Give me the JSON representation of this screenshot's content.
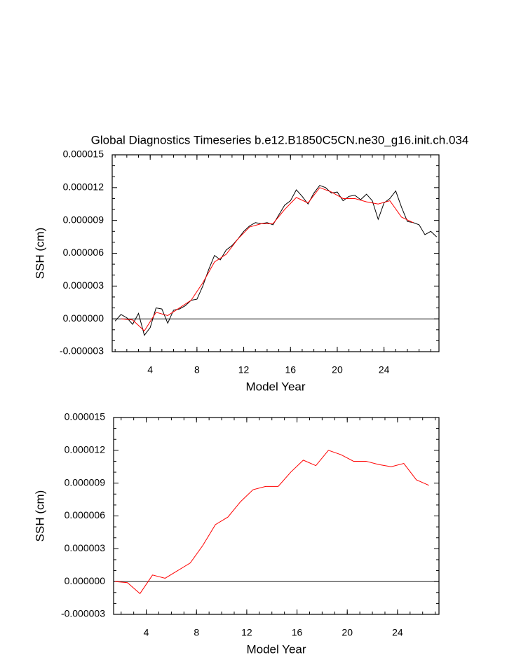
{
  "chart_data": [
    {
      "type": "line",
      "title": "Global Diagnostics Timeseries b.e12.B1850C5CN.ne30_g16.init.ch.034",
      "xlabel": "Model Year",
      "ylabel": "SSH (cm)",
      "xlim": [
        0.75,
        28.7
      ],
      "xticks": [
        4,
        8,
        12,
        16,
        20,
        24
      ],
      "ylim": [
        -3e-06,
        1.5e-05
      ],
      "yticks": [
        -3e-06,
        {
          "value": 0,
          "label": "0.000000"
        },
        3e-06,
        6e-06,
        9e-06,
        1.2e-05,
        1.5e-05
      ],
      "series": [
        {
          "color": "#000000",
          "x": [
            1.0,
            1.5,
            2.0,
            2.5,
            3.0,
            3.5,
            4.0,
            4.5,
            5.0,
            5.5,
            6.0,
            6.5,
            7.0,
            7.5,
            8.0,
            8.5,
            9.0,
            9.5,
            10.0,
            10.5,
            11.0,
            11.5,
            12.0,
            12.5,
            13.0,
            13.5,
            14.0,
            14.5,
            15.0,
            15.5,
            16.0,
            16.5,
            17.0,
            17.5,
            18.0,
            18.5,
            19.0,
            19.5,
            20.0,
            20.5,
            21.0,
            21.5,
            22.0,
            22.5,
            23.0,
            23.5,
            24.0,
            24.5,
            25.0,
            25.5,
            26.0,
            26.5,
            27.0,
            27.5,
            28.0,
            28.5
          ],
          "values": [
            -2e-07,
            4e-07,
            1e-07,
            -5e-07,
            5e-07,
            -1.5e-06,
            -8e-07,
            1e-06,
            9e-07,
            -4e-07,
            8e-07,
            9e-07,
            1.2e-06,
            1.7e-06,
            1.8e-06,
            3e-06,
            4.5e-06,
            5.8e-06,
            5.4e-06,
            6.3e-06,
            6.7e-06,
            7.3e-06,
            8e-06,
            8.5e-06,
            8.8e-06,
            8.7e-06,
            8.8e-06,
            8.6e-06,
            9.5e-06,
            1.04e-05,
            1.08e-05,
            1.18e-05,
            1.12e-05,
            1.05e-05,
            1.15e-05,
            1.22e-05,
            1.2e-05,
            1.15e-05,
            1.16e-05,
            1.08e-05,
            1.12e-05,
            1.13e-05,
            1.09e-05,
            1.14e-05,
            1.08e-05,
            9.1e-06,
            1.06e-05,
            1.1e-05,
            1.17e-05,
            1.02e-05,
            8.9e-06,
            8.8e-06,
            8.6e-06,
            7.7e-06,
            8e-06,
            7.5e-06
          ]
        },
        {
          "color": "#ff0000",
          "x": [
            1.5,
            2.5,
            3.5,
            4.5,
            5.5,
            6.5,
            7.5,
            8.5,
            9.5,
            10.5,
            11.5,
            12.5,
            13.5,
            14.5,
            15.5,
            16.5,
            17.5,
            18.5,
            19.5,
            20.5,
            21.5,
            22.5,
            23.5,
            24.5,
            25.5,
            26.5
          ],
          "values": [
            0,
            -1e-07,
            -1.1e-06,
            6e-07,
            3e-07,
            1e-06,
            1.7e-06,
            3.3e-06,
            5.2e-06,
            5.9e-06,
            7.3e-06,
            8.4e-06,
            8.7e-06,
            8.7e-06,
            1e-05,
            1.11e-05,
            1.06e-05,
            1.2e-05,
            1.16e-05,
            1.1e-05,
            1.1e-05,
            1.07e-05,
            1.05e-05,
            1.08e-05,
            9.3e-06,
            8.8e-06
          ]
        }
      ]
    },
    {
      "type": "line",
      "xlabel": "Model Year",
      "ylabel": "SSH (cm)",
      "xlim": [
        1.4,
        27.3
      ],
      "xticks": [
        4,
        8,
        12,
        16,
        20,
        24
      ],
      "ylim": [
        -3e-06,
        1.5e-05
      ],
      "yticks": [
        -3e-06,
        {
          "value": 0,
          "label": "0.000000"
        },
        3e-06,
        6e-06,
        9e-06,
        1.2e-05,
        1.5e-05
      ],
      "series": [
        {
          "color": "#ff0000",
          "x": [
            1.5,
            2.5,
            3.5,
            4.5,
            5.5,
            6.5,
            7.5,
            8.5,
            9.5,
            10.5,
            11.5,
            12.5,
            13.5,
            14.5,
            15.5,
            16.5,
            17.5,
            18.5,
            19.5,
            20.5,
            21.5,
            22.5,
            23.5,
            24.5,
            25.5,
            26.5
          ],
          "values": [
            0,
            -1e-07,
            -1.1e-06,
            6e-07,
            3e-07,
            1e-06,
            1.7e-06,
            3.3e-06,
            5.2e-06,
            5.9e-06,
            7.3e-06,
            8.4e-06,
            8.7e-06,
            8.7e-06,
            1e-05,
            1.11e-05,
            1.06e-05,
            1.2e-05,
            1.16e-05,
            1.1e-05,
            1.1e-05,
            1.07e-05,
            1.05e-05,
            1.08e-05,
            9.3e-06,
            8.8e-06
          ]
        }
      ]
    }
  ]
}
